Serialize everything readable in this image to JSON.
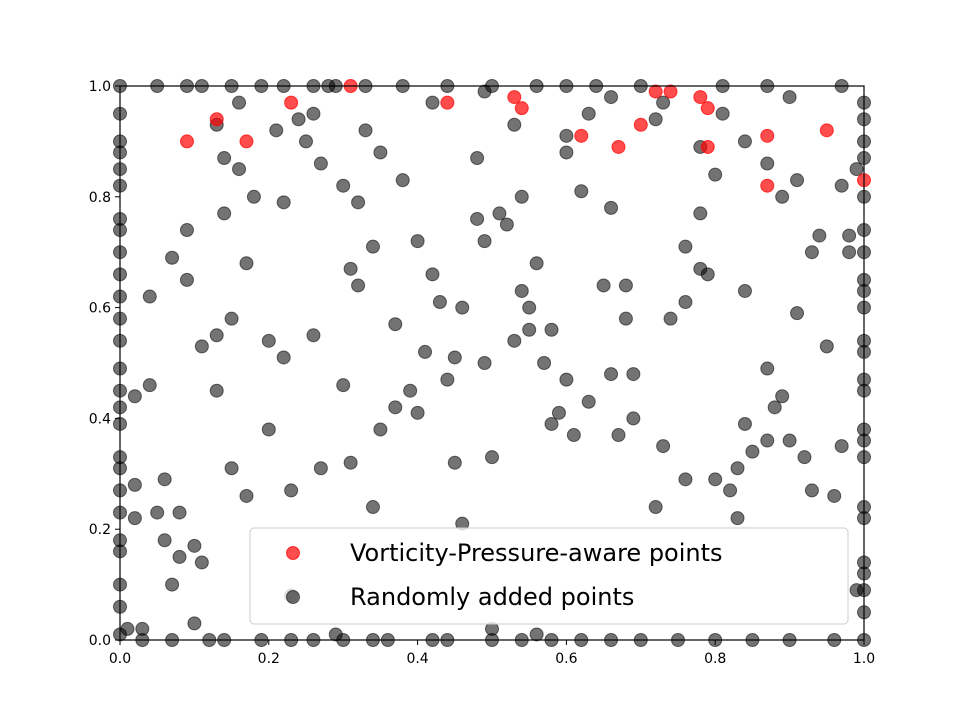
{
  "chart_data": {
    "type": "scatter",
    "title": "",
    "xlabel": "",
    "ylabel": "",
    "xlim": [
      0,
      1
    ],
    "ylim": [
      0,
      1
    ],
    "xticks": [
      "0.0",
      "0.2",
      "0.4",
      "0.6",
      "0.8",
      "1.0"
    ],
    "yticks": [
      "0.0",
      "0.2",
      "0.4",
      "0.6",
      "0.8",
      "1.0"
    ],
    "grid": false,
    "legend_position": "lower-right",
    "series": [
      {
        "name": "Vorticity-Pressure-aware points",
        "color": "#ff0000",
        "alpha": 0.7,
        "points": [
          [
            0.09,
            0.9
          ],
          [
            0.13,
            0.94
          ],
          [
            0.17,
            0.9
          ],
          [
            0.23,
            0.97
          ],
          [
            0.31,
            1.0
          ],
          [
            0.44,
            0.97
          ],
          [
            0.53,
            0.98
          ],
          [
            0.54,
            0.96
          ],
          [
            0.62,
            0.91
          ],
          [
            0.67,
            0.89
          ],
          [
            0.7,
            0.93
          ],
          [
            0.72,
            0.99
          ],
          [
            0.74,
            0.99
          ],
          [
            0.78,
            0.98
          ],
          [
            0.79,
            0.96
          ],
          [
            0.79,
            0.89
          ],
          [
            0.87,
            0.91
          ],
          [
            0.87,
            0.82
          ],
          [
            0.95,
            0.92
          ],
          [
            1.0,
            0.83
          ]
        ]
      },
      {
        "name": "Randomly added points",
        "color": "#000000",
        "alpha": 0.55,
        "points": [
          [
            0.0,
            0.95
          ],
          [
            0.0,
            0.9
          ],
          [
            0.0,
            0.88
          ],
          [
            0.0,
            0.85
          ],
          [
            0.0,
            0.82
          ],
          [
            0.0,
            0.76
          ],
          [
            0.0,
            0.74
          ],
          [
            0.0,
            0.7
          ],
          [
            0.0,
            0.66
          ],
          [
            0.0,
            0.62
          ],
          [
            0.0,
            0.58
          ],
          [
            0.0,
            0.54
          ],
          [
            0.0,
            0.49
          ],
          [
            0.0,
            0.45
          ],
          [
            0.0,
            0.42
          ],
          [
            0.0,
            0.39
          ],
          [
            0.0,
            0.33
          ],
          [
            0.0,
            0.31
          ],
          [
            0.0,
            0.27
          ],
          [
            0.0,
            0.23
          ],
          [
            0.0,
            0.18
          ],
          [
            0.0,
            0.16
          ],
          [
            0.0,
            0.1
          ],
          [
            0.0,
            0.06
          ],
          [
            0.0,
            0.01
          ],
          [
            0.0,
            1.0
          ],
          [
            1.0,
            0.97
          ],
          [
            1.0,
            0.94
          ],
          [
            1.0,
            0.9
          ],
          [
            1.0,
            0.87
          ],
          [
            1.0,
            0.8
          ],
          [
            1.0,
            0.74
          ],
          [
            1.0,
            0.7
          ],
          [
            1.0,
            0.65
          ],
          [
            1.0,
            0.63
          ],
          [
            1.0,
            0.6
          ],
          [
            1.0,
            0.54
          ],
          [
            1.0,
            0.52
          ],
          [
            1.0,
            0.47
          ],
          [
            1.0,
            0.45
          ],
          [
            1.0,
            0.38
          ],
          [
            1.0,
            0.36
          ],
          [
            1.0,
            0.33
          ],
          [
            1.0,
            0.24
          ],
          [
            1.0,
            0.22
          ],
          [
            1.0,
            0.14
          ],
          [
            1.0,
            0.12
          ],
          [
            1.0,
            0.09
          ],
          [
            1.0,
            0.05
          ],
          [
            1.0,
            0.0
          ],
          [
            0.05,
            1.0
          ],
          [
            0.09,
            1.0
          ],
          [
            0.11,
            1.0
          ],
          [
            0.15,
            1.0
          ],
          [
            0.19,
            1.0
          ],
          [
            0.22,
            1.0
          ],
          [
            0.26,
            1.0
          ],
          [
            0.28,
            1.0
          ],
          [
            0.33,
            1.0
          ],
          [
            0.38,
            1.0
          ],
          [
            0.44,
            1.0
          ],
          [
            0.5,
            1.0
          ],
          [
            0.56,
            1.0
          ],
          [
            0.6,
            1.0
          ],
          [
            0.64,
            1.0
          ],
          [
            0.7,
            1.0
          ],
          [
            0.81,
            1.0
          ],
          [
            0.87,
            1.0
          ],
          [
            0.97,
            1.0
          ],
          [
            0.03,
            0.0
          ],
          [
            0.07,
            0.0
          ],
          [
            0.12,
            0.0
          ],
          [
            0.14,
            0.0
          ],
          [
            0.19,
            0.0
          ],
          [
            0.23,
            0.0
          ],
          [
            0.26,
            0.0
          ],
          [
            0.3,
            0.0
          ],
          [
            0.34,
            0.0
          ],
          [
            0.36,
            0.0
          ],
          [
            0.42,
            0.0
          ],
          [
            0.44,
            0.0
          ],
          [
            0.5,
            0.0
          ],
          [
            0.54,
            0.0
          ],
          [
            0.58,
            0.0
          ],
          [
            0.62,
            0.0
          ],
          [
            0.66,
            0.0
          ],
          [
            0.7,
            0.0
          ],
          [
            0.75,
            0.0
          ],
          [
            0.8,
            0.0
          ],
          [
            0.85,
            0.0
          ],
          [
            0.9,
            0.0
          ],
          [
            0.96,
            0.0
          ],
          [
            0.13,
            0.93
          ],
          [
            0.14,
            0.87
          ],
          [
            0.16,
            0.97
          ],
          [
            0.21,
            0.92
          ],
          [
            0.24,
            0.94
          ],
          [
            0.25,
            0.9
          ],
          [
            0.26,
            0.95
          ],
          [
            0.27,
            0.86
          ],
          [
            0.29,
            1.0
          ],
          [
            0.3,
            0.82
          ],
          [
            0.32,
            0.79
          ],
          [
            0.33,
            0.92
          ],
          [
            0.34,
            0.71
          ],
          [
            0.35,
            0.88
          ],
          [
            0.38,
            0.83
          ],
          [
            0.42,
            0.97
          ],
          [
            0.48,
            0.87
          ],
          [
            0.49,
            0.99
          ],
          [
            0.49,
            0.72
          ],
          [
            0.48,
            0.76
          ],
          [
            0.52,
            0.75
          ],
          [
            0.51,
            0.77
          ],
          [
            0.53,
            0.93
          ],
          [
            0.54,
            0.8
          ],
          [
            0.56,
            0.68
          ],
          [
            0.6,
            0.88
          ],
          [
            0.6,
            0.91
          ],
          [
            0.62,
            0.81
          ],
          [
            0.63,
            0.95
          ],
          [
            0.66,
            0.98
          ],
          [
            0.66,
            0.78
          ],
          [
            0.72,
            0.94
          ],
          [
            0.73,
            0.97
          ],
          [
            0.76,
            0.71
          ],
          [
            0.78,
            0.89
          ],
          [
            0.78,
            0.77
          ],
          [
            0.78,
            0.67
          ],
          [
            0.8,
            0.84
          ],
          [
            0.81,
            0.95
          ],
          [
            0.84,
            0.9
          ],
          [
            0.87,
            0.86
          ],
          [
            0.89,
            0.8
          ],
          [
            0.9,
            0.98
          ],
          [
            0.91,
            0.83
          ],
          [
            0.93,
            0.7
          ],
          [
            0.94,
            0.73
          ],
          [
            0.97,
            0.82
          ],
          [
            0.98,
            0.73
          ],
          [
            0.98,
            0.7
          ],
          [
            0.99,
            0.85
          ],
          [
            0.99,
            0.09
          ],
          [
            0.04,
            0.62
          ],
          [
            0.07,
            0.69
          ],
          [
            0.09,
            0.74
          ],
          [
            0.09,
            0.65
          ],
          [
            0.11,
            0.53
          ],
          [
            0.13,
            0.55
          ],
          [
            0.13,
            0.45
          ],
          [
            0.14,
            0.77
          ],
          [
            0.16,
            0.85
          ],
          [
            0.17,
            0.68
          ],
          [
            0.15,
            0.58
          ],
          [
            0.18,
            0.8
          ],
          [
            0.2,
            0.54
          ],
          [
            0.22,
            0.79
          ],
          [
            0.22,
            0.51
          ],
          [
            0.26,
            0.55
          ],
          [
            0.31,
            0.67
          ],
          [
            0.32,
            0.64
          ],
          [
            0.3,
            0.46
          ],
          [
            0.37,
            0.57
          ],
          [
            0.4,
            0.72
          ],
          [
            0.41,
            0.52
          ],
          [
            0.42,
            0.66
          ],
          [
            0.43,
            0.61
          ],
          [
            0.44,
            0.47
          ],
          [
            0.45,
            0.51
          ],
          [
            0.46,
            0.6
          ],
          [
            0.49,
            0.5
          ],
          [
            0.53,
            0.54
          ],
          [
            0.54,
            0.63
          ],
          [
            0.55,
            0.56
          ],
          [
            0.55,
            0.6
          ],
          [
            0.57,
            0.5
          ],
          [
            0.58,
            0.56
          ],
          [
            0.6,
            0.47
          ],
          [
            0.65,
            0.64
          ],
          [
            0.66,
            0.48
          ],
          [
            0.68,
            0.58
          ],
          [
            0.68,
            0.64
          ],
          [
            0.69,
            0.48
          ],
          [
            0.74,
            0.58
          ],
          [
            0.76,
            0.61
          ],
          [
            0.79,
            0.66
          ],
          [
            0.84,
            0.63
          ],
          [
            0.87,
            0.49
          ],
          [
            0.91,
            0.59
          ],
          [
            0.95,
            0.53
          ],
          [
            0.02,
            0.44
          ],
          [
            0.04,
            0.46
          ],
          [
            0.02,
            0.28
          ],
          [
            0.02,
            0.22
          ],
          [
            0.05,
            0.23
          ],
          [
            0.06,
            0.29
          ],
          [
            0.06,
            0.18
          ],
          [
            0.08,
            0.23
          ],
          [
            0.07,
            0.1
          ],
          [
            0.08,
            0.15
          ],
          [
            0.1,
            0.17
          ],
          [
            0.11,
            0.14
          ],
          [
            0.1,
            0.03
          ],
          [
            0.15,
            0.31
          ],
          [
            0.17,
            0.26
          ],
          [
            0.2,
            0.38
          ],
          [
            0.23,
            0.27
          ],
          [
            0.23,
            0.08
          ],
          [
            0.27,
            0.31
          ],
          [
            0.31,
            0.32
          ],
          [
            0.34,
            0.24
          ],
          [
            0.35,
            0.38
          ],
          [
            0.37,
            0.42
          ],
          [
            0.39,
            0.45
          ],
          [
            0.4,
            0.41
          ],
          [
            0.45,
            0.32
          ],
          [
            0.46,
            0.21
          ],
          [
            0.5,
            0.33
          ],
          [
            0.5,
            0.02
          ],
          [
            0.58,
            0.39
          ],
          [
            0.59,
            0.41
          ],
          [
            0.61,
            0.37
          ],
          [
            0.63,
            0.43
          ],
          [
            0.67,
            0.37
          ],
          [
            0.69,
            0.4
          ],
          [
            0.72,
            0.24
          ],
          [
            0.73,
            0.35
          ],
          [
            0.76,
            0.29
          ],
          [
            0.8,
            0.29
          ],
          [
            0.82,
            0.27
          ],
          [
            0.83,
            0.31
          ],
          [
            0.84,
            0.39
          ],
          [
            0.85,
            0.34
          ],
          [
            0.87,
            0.36
          ],
          [
            0.88,
            0.42
          ],
          [
            0.89,
            0.44
          ],
          [
            0.9,
            0.36
          ],
          [
            0.92,
            0.33
          ],
          [
            0.93,
            0.27
          ],
          [
            0.96,
            0.26
          ],
          [
            0.97,
            0.35
          ],
          [
            0.01,
            0.02
          ],
          [
            0.03,
            0.02
          ],
          [
            0.29,
            0.01
          ],
          [
            0.56,
            0.01
          ],
          [
            0.83,
            0.22
          ]
        ]
      }
    ]
  }
}
